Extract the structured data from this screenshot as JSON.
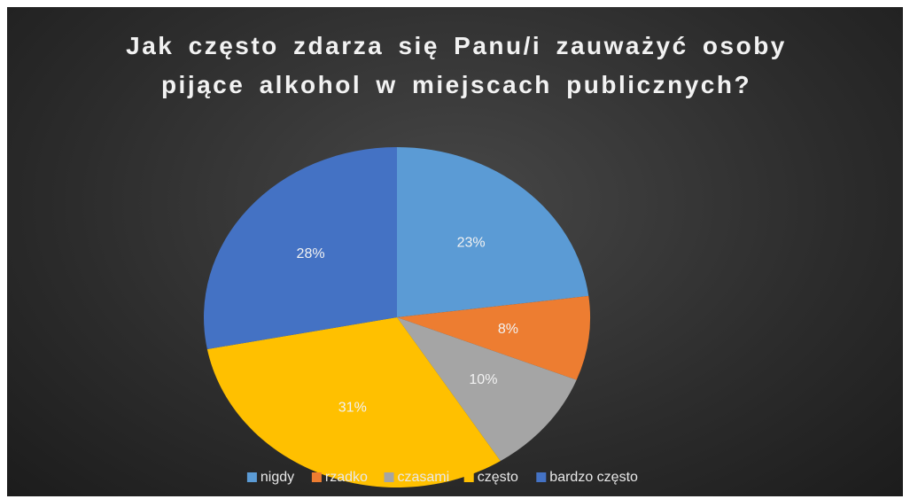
{
  "chart_data": {
    "type": "pie",
    "title": "Jak często zdarza się Panu/i zauważyć osoby pijące alkohol w miejscach publicznych?",
    "categories": [
      "nigdy",
      "rzadko",
      "czasami",
      "często",
      "bardzo często"
    ],
    "values": [
      23,
      8,
      10,
      31,
      28
    ],
    "value_labels": [
      "23%",
      "8%",
      "10%",
      "31%",
      "28%"
    ],
    "colors": [
      "#5b9bd5",
      "#ed7d31",
      "#a5a5a5",
      "#ffc000",
      "#4472c4"
    ],
    "legend": "bottom"
  }
}
